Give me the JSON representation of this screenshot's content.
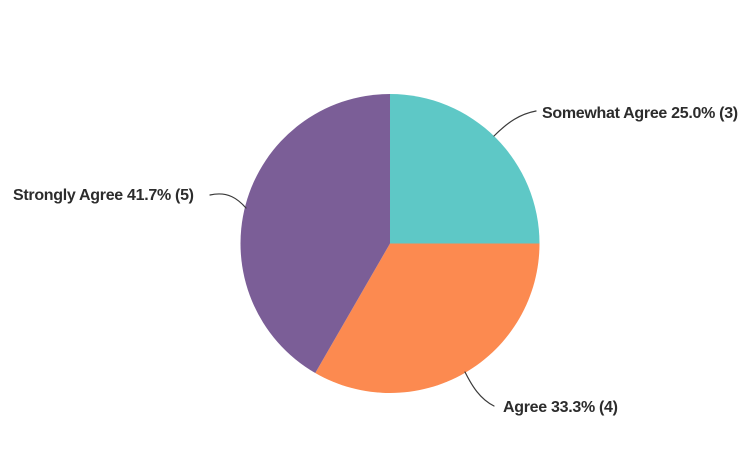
{
  "chart_data": {
    "type": "pie",
    "title": "",
    "direction": "clockwise",
    "start_angle_deg": 0,
    "legend_position": "none",
    "labels": "outside-with-leader-lines",
    "background_color": "#ffffff",
    "label_text_color": "#2c2c2c",
    "leader_line_color": "#3a3a3a",
    "slices": [
      {
        "label": "Somewhat Agree",
        "percent": 25.0,
        "count": 3,
        "display": "Somewhat Agree 25.0% (3)",
        "color": "#5ec8c6"
      },
      {
        "label": "Agree",
        "percent": 33.3,
        "count": 4,
        "display": "Agree 33.3% (4)",
        "color": "#fc8a50"
      },
      {
        "label": "Strongly Agree",
        "percent": 41.7,
        "count": 5,
        "display": "Strongly Agree 41.7% (5)",
        "color": "#7b5e97"
      }
    ]
  }
}
